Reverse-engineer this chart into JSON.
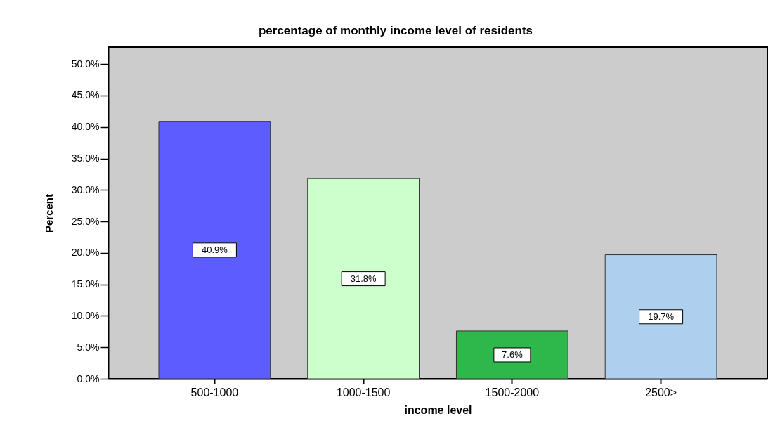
{
  "chart_data": {
    "type": "bar",
    "title": "percentage of monthly income level of residents",
    "xlabel": "income level",
    "ylabel": "Percent",
    "categories": [
      "500-1000",
      "1000-1500",
      "1500-2000",
      "2500>"
    ],
    "values": [
      40.9,
      31.8,
      7.6,
      19.7
    ],
    "colors": [
      "#5c5cff",
      "#ccffcc",
      "#2eb84b",
      "#aecfee"
    ],
    "value_labels": [
      "40.9%",
      "31.8%",
      "7.6%",
      "19.7%"
    ],
    "ylim": [
      0,
      52.7
    ],
    "yticks": [
      {
        "value": 0,
        "label": "0.0%"
      },
      {
        "value": 5,
        "label": "5.0%"
      },
      {
        "value": 10,
        "label": "10.0%"
      },
      {
        "value": 15,
        "label": "15.0%"
      },
      {
        "value": 20,
        "label": "20.0%"
      },
      {
        "value": 25,
        "label": "25.0%"
      },
      {
        "value": 30,
        "label": "30.0%"
      },
      {
        "value": 35,
        "label": "35.0%"
      },
      {
        "value": 40,
        "label": "40.0%"
      },
      {
        "value": 45,
        "label": "45.0%"
      },
      {
        "value": 50,
        "label": "50.0%"
      }
    ]
  }
}
